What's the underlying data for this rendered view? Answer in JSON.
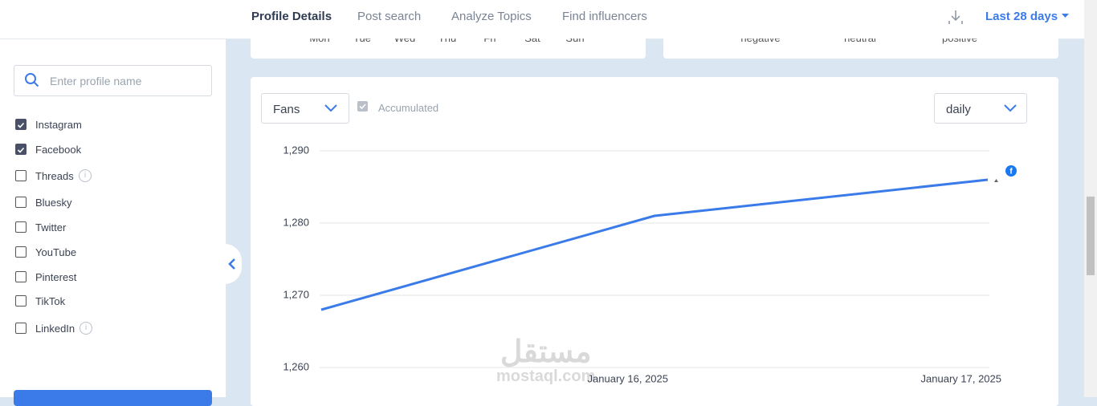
{
  "header": {
    "tabs": [
      "Profile Details",
      "Post search",
      "Analyze Topics",
      "Find influencers"
    ],
    "date_range": "Last 28 days"
  },
  "sidebar": {
    "search_placeholder": "Enter profile name",
    "networks": [
      {
        "label": "Instagram",
        "checked": true,
        "info": false
      },
      {
        "label": "Facebook",
        "checked": true,
        "info": false
      },
      {
        "label": "Threads",
        "checked": false,
        "info": true
      },
      {
        "label": "Bluesky",
        "checked": false,
        "info": false
      },
      {
        "label": "Twitter",
        "checked": false,
        "info": false
      },
      {
        "label": "YouTube",
        "checked": false,
        "info": false
      },
      {
        "label": "Pinterest",
        "checked": false,
        "info": false
      },
      {
        "label": "TikTok",
        "checked": false,
        "info": false
      },
      {
        "label": "LinkedIn",
        "checked": false,
        "info": true
      }
    ]
  },
  "top_cards": {
    "weekdays": [
      "Mon",
      "Tue",
      "Wed",
      "Thu",
      "Fri",
      "Sat",
      "Sun"
    ],
    "sentiments": [
      "negative",
      "neutral",
      "positive"
    ]
  },
  "chart_controls": {
    "metric": "Fans",
    "accumulated": "Accumulated",
    "interval": "daily"
  },
  "watermark": {
    "arabic": "مستقل",
    "latin": "mostaql.com"
  },
  "chart_data": {
    "type": "line",
    "categories": [
      null,
      "January 16, 2025",
      "January 17, 2025"
    ],
    "values": [
      1268,
      1281,
      1286
    ],
    "color": "#3a7be9",
    "ylim": [
      1260,
      1290
    ],
    "yticks": [
      {
        "value": 1260,
        "label": "1,260"
      },
      {
        "value": 1270,
        "label": "1,270"
      },
      {
        "value": 1280,
        "label": "1,280"
      },
      {
        "value": 1290,
        "label": "1,290"
      }
    ],
    "grid": true
  }
}
